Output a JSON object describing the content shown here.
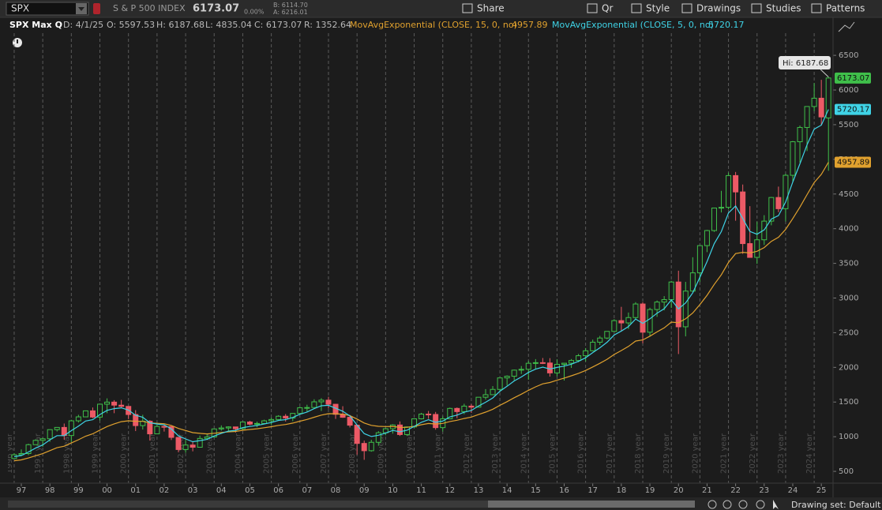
{
  "toolbar": {
    "symbol": "SPX",
    "description": "S & P 500 INDEX",
    "bid_label": "B:",
    "bid": "6114.70",
    "ask_label": "A:",
    "ask": "6216.01",
    "change": "0.00%",
    "buttons": [
      "Share",
      "Qr",
      "Style",
      "Drawings",
      "Studies",
      "Patterns"
    ]
  },
  "info_bar": {
    "symbol": "SPX Max Q",
    "date_label": "D:",
    "date": "4/1/25",
    "open_label": "O:",
    "high_label": "H:",
    "low_label": "L:",
    "close_label": "C:",
    "range_label": "R:",
    "range": 1352.64
  },
  "footer": {
    "drawing_set": "Drawing set: Default"
  },
  "chart_data": {
    "type": "candlestick",
    "hi_label": "Hi:",
    "up_color": "#3fbf4a",
    "down_color": "#ec5a66",
    "x": [
      1996.75,
      1997,
      1997.25,
      1997.5,
      1997.75,
      1998,
      1998.25,
      1998.5,
      1998.75,
      1999,
      1999.25,
      1999.5,
      1999.75,
      2000,
      2000.25,
      2000.5,
      2000.75,
      2001,
      2001.25,
      2001.5,
      2001.75,
      2002,
      2002.25,
      2002.5,
      2002.75,
      2003,
      2003.25,
      2003.5,
      2003.75,
      2004,
      2004.25,
      2004.5,
      2004.75,
      2005,
      2005.25,
      2005.5,
      2005.75,
      2006,
      2006.25,
      2006.5,
      2006.75,
      2007,
      2007.25,
      2007.5,
      2007.75,
      2008,
      2008.25,
      2008.5,
      2008.75,
      2009,
      2009.25,
      2009.5,
      2009.75,
      2010,
      2010.25,
      2010.5,
      2010.75,
      2011,
      2011.25,
      2011.5,
      2011.75,
      2012,
      2012.25,
      2012.5,
      2012.75,
      2013,
      2013.25,
      2013.5,
      2013.75,
      2014,
      2014.25,
      2014.5,
      2014.75,
      2015,
      2015.25,
      2015.5,
      2015.75,
      2016,
      2016.25,
      2016.5,
      2016.75,
      2017,
      2017.25,
      2017.5,
      2017.75,
      2018,
      2018.25,
      2018.5,
      2018.75,
      2019,
      2019.25,
      2019.5,
      2019.75,
      2020,
      2020.25,
      2020.5,
      2020.75,
      2021,
      2021.25,
      2021.5,
      2021.75,
      2022,
      2022.25,
      2022.5,
      2022.75,
      2023,
      2023.25,
      2023.5,
      2023.75,
      2024,
      2024.25,
      2024.5,
      2024.75,
      2025,
      2025.25
    ],
    "open": [
      685,
      740,
      757,
      885,
      947,
      970,
      1102,
      1134,
      1017,
      1229,
      1286,
      1373,
      1283,
      1469,
      1499,
      1455,
      1437,
      1320,
      1160,
      1224,
      1041,
      1148,
      1147,
      990,
      815,
      880,
      848,
      975,
      996,
      1112,
      1126,
      1141,
      1115,
      1212,
      1181,
      1191,
      1229,
      1248,
      1295,
      1270,
      1336,
      1418,
      1421,
      1503,
      1527,
      1468,
      1323,
      1280,
      1166,
      903,
      798,
      919,
      1057,
      1115,
      1169,
      1031,
      1141,
      1258,
      1326,
      1321,
      1131,
      1258,
      1408,
      1362,
      1441,
      1426,
      1569,
      1606,
      1682,
      1848,
      1872,
      1960,
      1972,
      2059,
      2068,
      2063,
      1920,
      2044,
      2060,
      2099,
      2168,
      2239,
      2363,
      2423,
      2519,
      2674,
      2641,
      2718,
      2914,
      2507,
      2834,
      2942,
      2977,
      3231,
      2585,
      3100,
      3363,
      3756,
      3973,
      4298,
      4308,
      4766,
      4530,
      3785,
      3586,
      3840,
      4109,
      4450,
      4288,
      4770,
      5254,
      5460,
      5762,
      5882,
      5597.53
    ],
    "high": [
      762,
      817,
      899,
      961,
      983,
      1105,
      1139,
      1190,
      1244,
      1316,
      1375,
      1421,
      1473,
      1553,
      1527,
      1531,
      1438,
      1383,
      1316,
      1239,
      1173,
      1176,
      1147,
      994,
      954,
      935,
      1016,
      1040,
      1112,
      1163,
      1150,
      1141,
      1217,
      1229,
      1217,
      1245,
      1275,
      1310,
      1326,
      1340,
      1431,
      1461,
      1540,
      1556,
      1576,
      1471,
      1440,
      1313,
      1167,
      944,
      956,
      1080,
      1130,
      1180,
      1220,
      1149,
      1263,
      1344,
      1371,
      1357,
      1293,
      1420,
      1422,
      1475,
      1470,
      1570,
      1687,
      1730,
      1849,
      1884,
      1968,
      2019,
      2093,
      2119,
      2135,
      2133,
      2116,
      2053,
      2120,
      2194,
      2278,
      2401,
      2454,
      2520,
      2695,
      2873,
      2791,
      2941,
      2940,
      2860,
      2964,
      3028,
      3247,
      3394,
      3233,
      3588,
      3760,
      3983,
      4302,
      4546,
      4808,
      4818,
      4637,
      4325,
      4101,
      4195,
      4458,
      4607,
      4793,
      5265,
      5488,
      5767,
      6100,
      6147,
      6187.68
    ],
    "low": [
      681,
      733,
      733,
      885,
      855,
      927,
      1075,
      957,
      923,
      1205,
      1282,
      1268,
      1233,
      1339,
      1339,
      1421,
      1254,
      1081,
      1103,
      944,
      1041,
      1074,
      952,
      775,
      768,
      789,
      848,
      960,
      996,
      1087,
      1076,
      1060,
      1090,
      1164,
      1137,
      1183,
      1168,
      1245,
      1219,
      1224,
      1327,
      1363,
      1416,
      1371,
      1406,
      1257,
      1272,
      1133,
      741,
      667,
      784,
      869,
      1020,
      1044,
      1011,
      1011,
      1131,
      1249,
      1258,
      1101,
      1075,
      1258,
      1267,
      1325,
      1343,
      1426,
      1536,
      1604,
      1647,
      1738,
      1814,
      1904,
      1821,
      1981,
      2048,
      1867,
      1872,
      1810,
      1992,
      2074,
      2084,
      2233,
      2322,
      2406,
      2517,
      2533,
      2553,
      2691,
      2347,
      2443,
      2728,
      2822,
      2856,
      2192,
      2447,
      3089,
      3233,
      3662,
      3954,
      4234,
      4279,
      4115,
      3637,
      3584,
      3492,
      3765,
      4049,
      4238,
      4104,
      4682,
      4954,
      5119,
      5696,
      5489,
      4835.04
    ],
    "close": [
      740,
      757,
      885,
      947,
      970,
      1102,
      1134,
      1017,
      1229,
      1286,
      1373,
      1283,
      1469,
      1499,
      1455,
      1437,
      1320,
      1160,
      1224,
      1041,
      1148,
      1147,
      990,
      815,
      880,
      848,
      975,
      996,
      1112,
      1126,
      1141,
      1115,
      1212,
      1181,
      1191,
      1229,
      1248,
      1295,
      1270,
      1336,
      1418,
      1421,
      1503,
      1527,
      1468,
      1323,
      1280,
      1166,
      903,
      798,
      919,
      1057,
      1115,
      1169,
      1031,
      1141,
      1258,
      1326,
      1321,
      1131,
      1258,
      1408,
      1362,
      1441,
      1426,
      1569,
      1606,
      1682,
      1848,
      1872,
      1960,
      1972,
      2059,
      2068,
      2063,
      1920,
      2044,
      2060,
      2099,
      2168,
      2239,
      2363,
      2423,
      2519,
      2674,
      2641,
      2718,
      2914,
      2507,
      2834,
      2942,
      2977,
      3231,
      2585,
      3100,
      3363,
      3756,
      3973,
      4298,
      4308,
      4766,
      4530,
      3785,
      3586,
      3840,
      4109,
      4450,
      4288,
      4770,
      5254,
      5460,
      5762,
      5882,
      5612,
      6173.07
    ],
    "series": [
      {
        "name": "MovAvgExponential (CLOSE, 15, 0, no)",
        "color": "#e0a12e",
        "values": [
          653,
          666,
          693,
          725,
          756,
          799,
          841,
          863,
          909,
          956,
          1008,
          1042,
          1095,
          1146,
          1185,
          1217,
          1230,
          1221,
          1221,
          1199,
          1193,
          1187,
          1162,
          1119,
          1089,
          1059,
          1048,
          1041,
          1050,
          1060,
          1070,
          1076,
          1093,
          1104,
          1115,
          1129,
          1144,
          1163,
          1176,
          1196,
          1224,
          1249,
          1281,
          1312,
          1332,
          1331,
          1325,
          1305,
          1255,
          1198,
          1163,
          1150,
          1146,
          1149,
          1134,
          1135,
          1150,
          1172,
          1191,
          1183,
          1192,
          1219,
          1237,
          1263,
          1283,
          1319,
          1355,
          1396,
          1453,
          1505,
          1562,
          1613,
          1669,
          1719,
          1762,
          1782,
          1815,
          1846,
          1878,
          1914,
          1955,
          2006,
          2058,
          2116,
          2186,
          2243,
          2302,
          2379,
          2395,
          2450,
          2512,
          2570,
          2653,
          2644,
          2701,
          2784,
          2906,
          3039,
          3196,
          3335,
          3514,
          3641,
          3659,
          3650,
          3674,
          3728,
          3818,
          3877,
          3989,
          4147,
          4311,
          4492,
          4666,
          4784,
          4957.89
        ]
      },
      {
        "name": "MovAvgExponential (CLOSE, 5, 0, no)",
        "color": "#3fd3e6",
        "values": [
          713,
          728,
          780,
          836,
          881,
          955,
          1015,
          1016,
          1087,
          1153,
          1226,
          1245,
          1320,
          1380,
          1405,
          1416,
          1384,
          1309,
          1281,
          1201,
          1183,
          1171,
          1111,
          1012,
          968,
          928,
          944,
          961,
          1011,
          1049,
          1080,
          1092,
          1132,
          1148,
          1162,
          1184,
          1205,
          1235,
          1247,
          1277,
          1324,
          1356,
          1405,
          1446,
          1453,
          1410,
          1367,
          1300,
          1168,
          1045,
          1003,
          1021,
          1052,
          1091,
          1071,
          1094,
          1149,
          1208,
          1246,
          1208,
          1225,
          1286,
          1311,
          1354,
          1378,
          1442,
          1497,
          1559,
          1655,
          1727,
          1805,
          1861,
          1927,
          1974,
          2004,
          1976,
          1999,
          2019,
          2046,
          2087,
          2138,
          2213,
          2283,
          2362,
          2466,
          2524,
          2589,
          2697,
          2634,
          2701,
          2781,
          2846,
          2974,
          2844,
          2929,
          3074,
          3301,
          3525,
          3783,
          3958,
          4227,
          4328,
          4147,
          3960,
          3920,
          3983,
          4139,
          4189,
          4383,
          4673,
          4935,
          5211,
          5435,
          5494,
          5720.17
        ]
      }
    ],
    "xlim": [
      1996.53,
      2025.41
    ],
    "ylim": [
      330,
      6820
    ],
    "xticks": [
      {
        "value": 1997,
        "label": "97"
      },
      {
        "value": 1998,
        "label": "98"
      },
      {
        "value": 1999,
        "label": "99"
      },
      {
        "value": 2000,
        "label": "00"
      },
      {
        "value": 2001,
        "label": "01"
      },
      {
        "value": 2002,
        "label": "02"
      },
      {
        "value": 2003,
        "label": "03"
      },
      {
        "value": 2004,
        "label": "04"
      },
      {
        "value": 2005,
        "label": "05"
      },
      {
        "value": 2006,
        "label": "06"
      },
      {
        "value": 2007,
        "label": "07"
      },
      {
        "value": 2008,
        "label": "08"
      },
      {
        "value": 2009,
        "label": "09"
      },
      {
        "value": 2010,
        "label": "10"
      },
      {
        "value": 2011,
        "label": "11"
      },
      {
        "value": 2012,
        "label": "12"
      },
      {
        "value": 2013,
        "label": "13"
      },
      {
        "value": 2014,
        "label": "14"
      },
      {
        "value": 2015,
        "label": "15"
      },
      {
        "value": 2016,
        "label": "16"
      },
      {
        "value": 2017,
        "label": "17"
      },
      {
        "value": 2018,
        "label": "18"
      },
      {
        "value": 2019,
        "label": "19"
      },
      {
        "value": 2020,
        "label": "20"
      },
      {
        "value": 2021,
        "label": "21"
      },
      {
        "value": 2022,
        "label": "22"
      },
      {
        "value": 2023,
        "label": "23"
      },
      {
        "value": 2024,
        "label": "24"
      },
      {
        "value": 2025,
        "label": "25"
      }
    ],
    "yticks": [
      500,
      1000,
      1500,
      2000,
      2500,
      3000,
      3500,
      4000,
      4500,
      5000,
      5500,
      6000,
      6500
    ],
    "year_markers": [
      {
        "value": 1996.75,
        "label": "1996 year"
      },
      {
        "value": 1997.75,
        "label": "1997 year"
      },
      {
        "value": 1998.75,
        "label": "1998 year"
      },
      {
        "value": 1999.75,
        "label": "1999 year"
      },
      {
        "value": 2000.75,
        "label": "2000 year"
      },
      {
        "value": 2001.75,
        "label": "2001 year"
      },
      {
        "value": 2002.75,
        "label": "2002 year"
      },
      {
        "value": 2003.75,
        "label": "2003 year"
      },
      {
        "value": 2004.75,
        "label": "2004 year"
      },
      {
        "value": 2005.75,
        "label": "2005 year"
      },
      {
        "value": 2006.75,
        "label": "2006 year"
      },
      {
        "value": 2007.75,
        "label": "2007 year"
      },
      {
        "value": 2008.75,
        "label": "2008 year"
      },
      {
        "value": 2009.75,
        "label": "2009 year"
      },
      {
        "value": 2010.75,
        "label": "2010 year"
      },
      {
        "value": 2011.75,
        "label": "2011 year"
      },
      {
        "value": 2012.75,
        "label": "2012 year"
      },
      {
        "value": 2013.75,
        "label": "2013 year"
      },
      {
        "value": 2014.75,
        "label": "2014 year"
      },
      {
        "value": 2015.75,
        "label": "2015 year"
      },
      {
        "value": 2016.75,
        "label": "2016 year"
      },
      {
        "value": 2017.75,
        "label": "2017 year"
      },
      {
        "value": 2018.75,
        "label": "2018 year"
      },
      {
        "value": 2019.75,
        "label": "2019 year"
      },
      {
        "value": 2020.75,
        "label": "2020 year"
      },
      {
        "value": 2021.75,
        "label": "2021 year"
      },
      {
        "value": 2022.75,
        "label": "2022 year"
      },
      {
        "value": 2023.75,
        "label": "2023 year"
      },
      {
        "value": 2024.75,
        "label": "2024 year"
      }
    ]
  }
}
